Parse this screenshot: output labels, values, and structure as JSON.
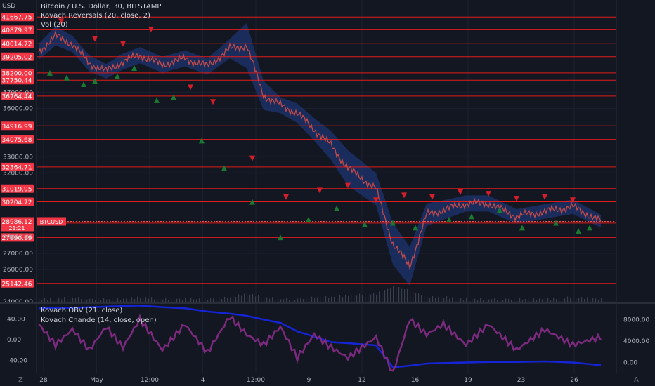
{
  "header": {
    "currency": "USD",
    "title": "Bitcoin / U.S. Dollar, 30, BITSTAMP",
    "indicator1": "Kovach Reversals (20, close, 2)",
    "indicator2": "Vol (20)"
  },
  "lower_panel": {
    "indicator1": "Kovach OBV (21, close)",
    "indicator2": "Kovach Chande (14, close, open)"
  },
  "bottom_bar": {
    "left_icon": "Z",
    "right_icon": "A"
  },
  "colors": {
    "background": "#131722",
    "level_line": "#e21b1b",
    "price_line": "#c24a4a",
    "band": "#1f3e8a",
    "up_marker": "#1b7a32",
    "down_marker": "#d41f2b",
    "obv": "#1524d6",
    "chande": "#7b2a7d",
    "price_badge": "#f23645"
  },
  "chart_data": [
    {
      "type": "line",
      "title": "Bitcoin / U.S. Dollar, 30, BITSTAMP",
      "x_labels": [
        "28",
        "May",
        "12:00",
        "4",
        "12:00",
        "9",
        "12",
        "16",
        "19",
        "23",
        "26"
      ],
      "y_ticks": [
        "36000.00",
        "33000.00",
        "32000.00",
        "28000.00",
        "27000.00",
        "26000.00",
        "24000.00",
        "37000.00"
      ],
      "ylim": [
        24000,
        42200
      ],
      "level_lines": [
        "41667.75",
        "40879.97",
        "40014.72",
        "39205.02",
        "38200.00",
        "37750.44",
        "36764.44",
        "34916.99",
        "34075.68",
        "32364.71",
        "31019.95",
        "30204.72",
        "28879.31",
        "27990.99",
        "25142.46"
      ],
      "current_price": {
        "value": "28986.12",
        "countdown": "21:21",
        "ticker": "BTCUSD"
      },
      "x": [
        0,
        3,
        6,
        9,
        12,
        15,
        18,
        22,
        26,
        30,
        34,
        37,
        40,
        43,
        46,
        49,
        52,
        55,
        60,
        63,
        66,
        69,
        72,
        76,
        80,
        85,
        90,
        95,
        100
      ],
      "close": [
        39500,
        40500,
        40000,
        38800,
        38300,
        38900,
        39300,
        38700,
        39100,
        38600,
        39700,
        39900,
        36800,
        36200,
        35700,
        34700,
        33700,
        32300,
        31000,
        27600,
        26200,
        29400,
        29700,
        30100,
        30100,
        29300,
        29600,
        29900,
        29000
      ],
      "band_width": [
        500,
        600,
        500,
        500,
        450,
        500,
        500,
        500,
        500,
        500,
        600,
        1400,
        900,
        500,
        600,
        700,
        900,
        1100,
        1000,
        1300,
        1200,
        700,
        600,
        500,
        500,
        450,
        450,
        450,
        400
      ],
      "up_markers": [
        [
          2,
          38200
        ],
        [
          5,
          37900
        ],
        [
          8,
          37500
        ],
        [
          10,
          37700
        ],
        [
          14,
          38000
        ],
        [
          17,
          38500
        ],
        [
          21,
          36500
        ],
        [
          24,
          36700
        ],
        [
          29,
          34000
        ],
        [
          33,
          32300
        ],
        [
          38,
          30200
        ],
        [
          43,
          28000
        ],
        [
          48,
          29100
        ],
        [
          53,
          29800
        ],
        [
          58,
          28800
        ],
        [
          63,
          28900
        ],
        [
          67,
          28600
        ],
        [
          73,
          29100
        ],
        [
          77,
          29300
        ],
        [
          82,
          29700
        ],
        [
          86,
          28600
        ],
        [
          92,
          28900
        ],
        [
          96,
          28400
        ],
        [
          98,
          28600
        ]
      ],
      "down_markers": [
        [
          4,
          41400
        ],
        [
          10,
          40300
        ],
        [
          15,
          40000
        ],
        [
          20,
          40900
        ],
        [
          27,
          37300
        ],
        [
          31,
          36400
        ],
        [
          38,
          32900
        ],
        [
          44,
          30500
        ],
        [
          50,
          30900
        ],
        [
          55,
          31200
        ],
        [
          60,
          30300
        ],
        [
          65,
          30600
        ],
        [
          70,
          30500
        ],
        [
          75,
          30800
        ],
        [
          80,
          30700
        ],
        [
          85,
          30400
        ],
        [
          90,
          30500
        ],
        [
          95,
          30300
        ]
      ],
      "volume": [
        1,
        1,
        2,
        1,
        1,
        1,
        2,
        1,
        1,
        1,
        2,
        4,
        2,
        1,
        1,
        2,
        2,
        3,
        4,
        8,
        6,
        2,
        2,
        1,
        1,
        1,
        1,
        2,
        1
      ]
    },
    {
      "type": "line",
      "title": "Kovach OBV (21, close) / Kovach Chande (14, close, open)",
      "left_ticks": [
        "40.00",
        "0.00",
        "-40.00"
      ],
      "right_ticks": [
        "8000.00",
        "4000.00",
        "0.00"
      ],
      "left_lim": [
        -60,
        60
      ],
      "right_lim": [
        -1500,
        10000
      ],
      "x": [
        0,
        3,
        6,
        9,
        12,
        15,
        18,
        22,
        26,
        30,
        34,
        37,
        40,
        43,
        46,
        49,
        52,
        55,
        60,
        63,
        66,
        69,
        72,
        76,
        80,
        85,
        90,
        95,
        100
      ],
      "series": [
        {
          "name": "Kovach OBV (21, close)",
          "axis": "right",
          "values": [
            10100,
            10200,
            10200,
            10300,
            10400,
            10500,
            10600,
            10300,
            10100,
            9500,
            9100,
            8700,
            8000,
            7400,
            5800,
            4800,
            3800,
            3600,
            3200,
            -900,
            -600,
            -200,
            -100,
            0,
            100,
            100,
            200,
            0,
            -500
          ]
        },
        {
          "name": "Kovach Chande (14, close, open)",
          "axis": "left",
          "values": [
            30,
            -10,
            20,
            -20,
            25,
            -15,
            40,
            -20,
            30,
            -25,
            45,
            10,
            -10,
            25,
            -35,
            10,
            -15,
            -35,
            5,
            -65,
            40,
            10,
            30,
            -10,
            30,
            -20,
            20,
            -10,
            5
          ]
        }
      ]
    }
  ]
}
